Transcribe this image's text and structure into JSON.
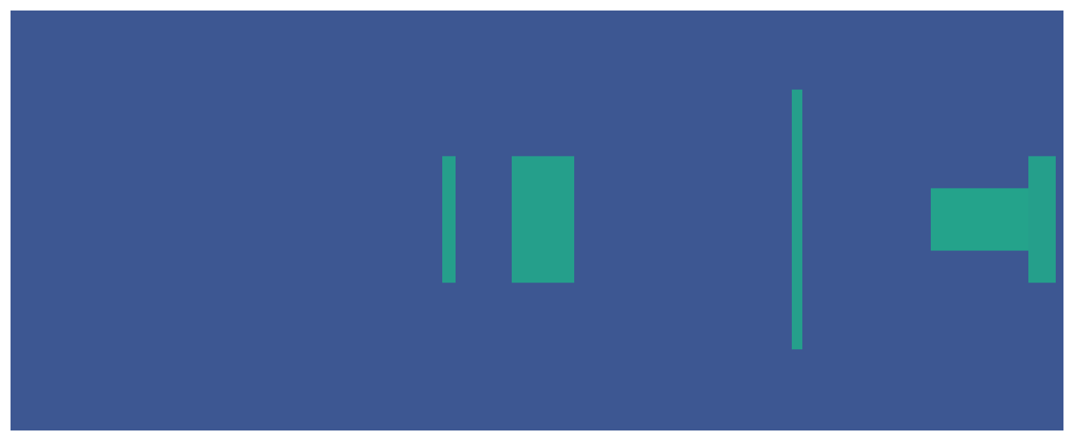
{
  "chart_data": {
    "type": "heatmap",
    "xlim": [
      0,
      1500
    ],
    "ylim": [
      0,
      600
    ],
    "tick_labels": false,
    "grid": false,
    "color_range": [
      0,
      1
    ],
    "colors": [
      "#3d5792",
      "#24a38b"
    ],
    "cells": [
      {
        "x": [
          0,
          1500
        ],
        "y": [
          0,
          600
        ],
        "value": 0
      },
      {
        "x": [
          615,
          634
        ],
        "y": [
          211,
          392
        ],
        "value": 0.95
      },
      {
        "x": [
          714,
          803
        ],
        "y": [
          211,
          392
        ],
        "value": 0.95
      },
      {
        "x": [
          1113,
          1128
        ],
        "y": [
          116,
          487
        ],
        "value": 0.95
      },
      {
        "x": [
          1311,
          1450
        ],
        "y": [
          257,
          346
        ],
        "value": 1
      },
      {
        "x": [
          1450,
          1489
        ],
        "y": [
          211,
          392
        ],
        "value": 0.95
      }
    ]
  }
}
